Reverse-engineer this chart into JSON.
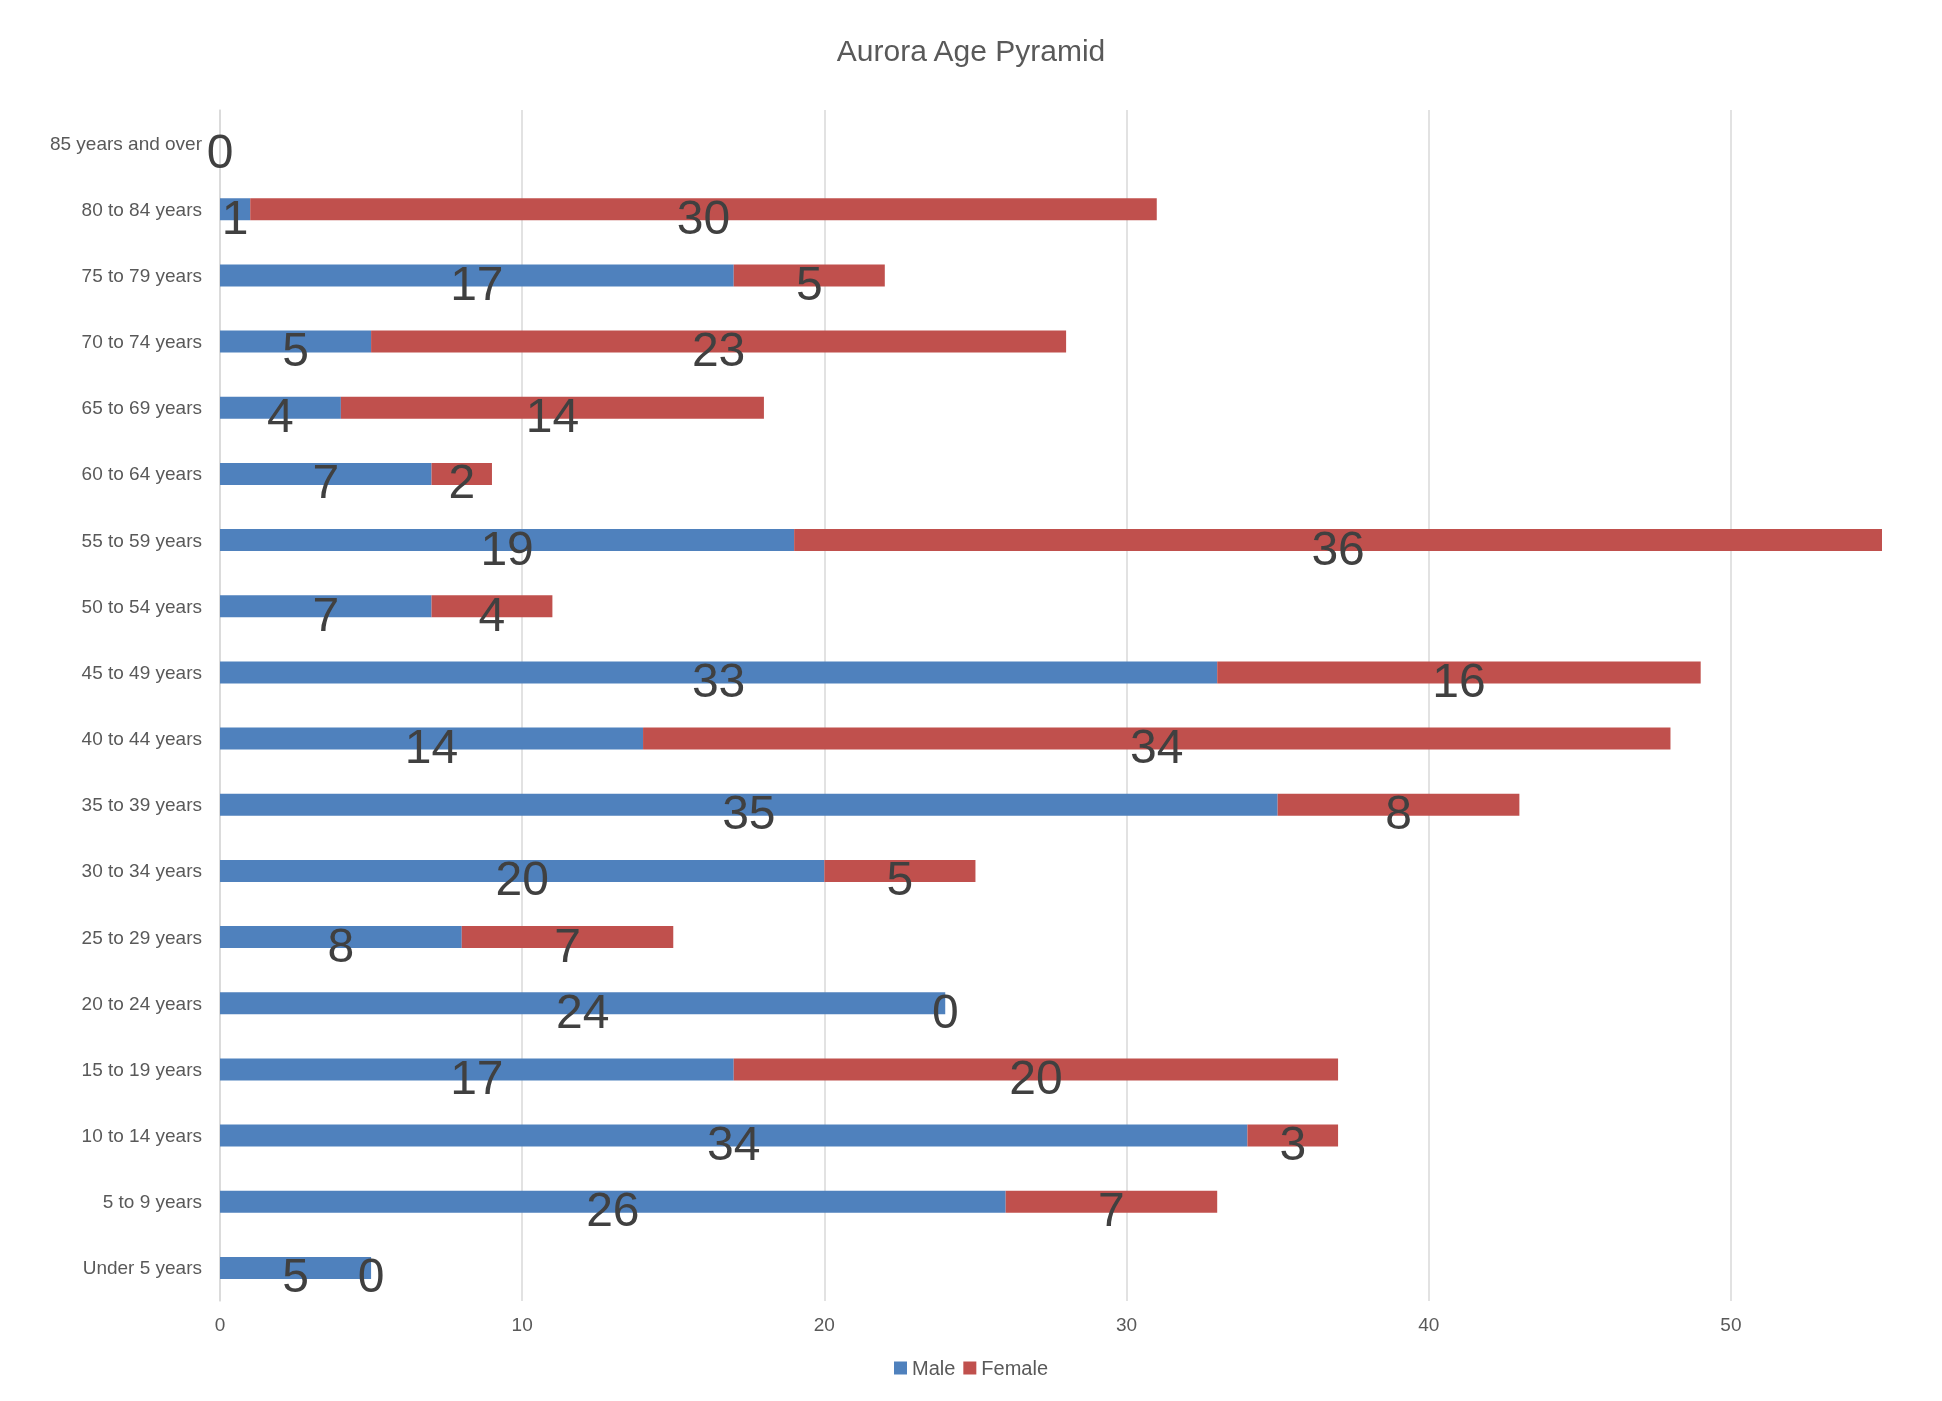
{
  "chart_data": {
    "type": "bar",
    "orientation": "horizontal",
    "stacked": true,
    "title": "Aurora Age Pyramid",
    "categories": [
      "85 years and over",
      "80 to 84 years",
      "75 to 79 years",
      "70 to 74 years",
      "65 to 69 years",
      "60 to 64 years",
      "55 to 59 years",
      "50 to 54 years",
      "45 to 49 years",
      "40 to 44 years",
      "35 to 39 years",
      "30 to 34 years",
      "25 to 29 years",
      "20 to 24 years",
      "15 to 19 years",
      "10 to 14 years",
      "5 to 9 years",
      "Under 5 years"
    ],
    "series": [
      {
        "name": "Male",
        "color": "#4f81bd",
        "values": [
          0,
          1,
          17,
          5,
          4,
          7,
          19,
          7,
          33,
          14,
          35,
          20,
          8,
          24,
          17,
          34,
          26,
          5
        ],
        "value_labels": [
          "0",
          "1",
          "17",
          "5",
          "4",
          "7",
          "19",
          "7",
          "33",
          "14",
          "35",
          "20",
          "8",
          "24",
          "17",
          "34",
          "26",
          "5"
        ]
      },
      {
        "name": "Female",
        "color": "#c0504d",
        "values": [
          0,
          30,
          5,
          23,
          14,
          2,
          36,
          4,
          16,
          34,
          8,
          5,
          7,
          0,
          20,
          3,
          7,
          0
        ],
        "value_labels": [
          null,
          "30",
          "5",
          "23",
          "14",
          "2",
          "36",
          "4",
          "16",
          "34",
          "8",
          "5",
          "7",
          "0",
          "20",
          "3",
          "7",
          "0"
        ]
      }
    ],
    "xlim": [
      0,
      55
    ],
    "xticks": [
      0,
      10,
      20,
      30,
      40,
      50
    ],
    "grid": "x",
    "legend": "bottom"
  }
}
